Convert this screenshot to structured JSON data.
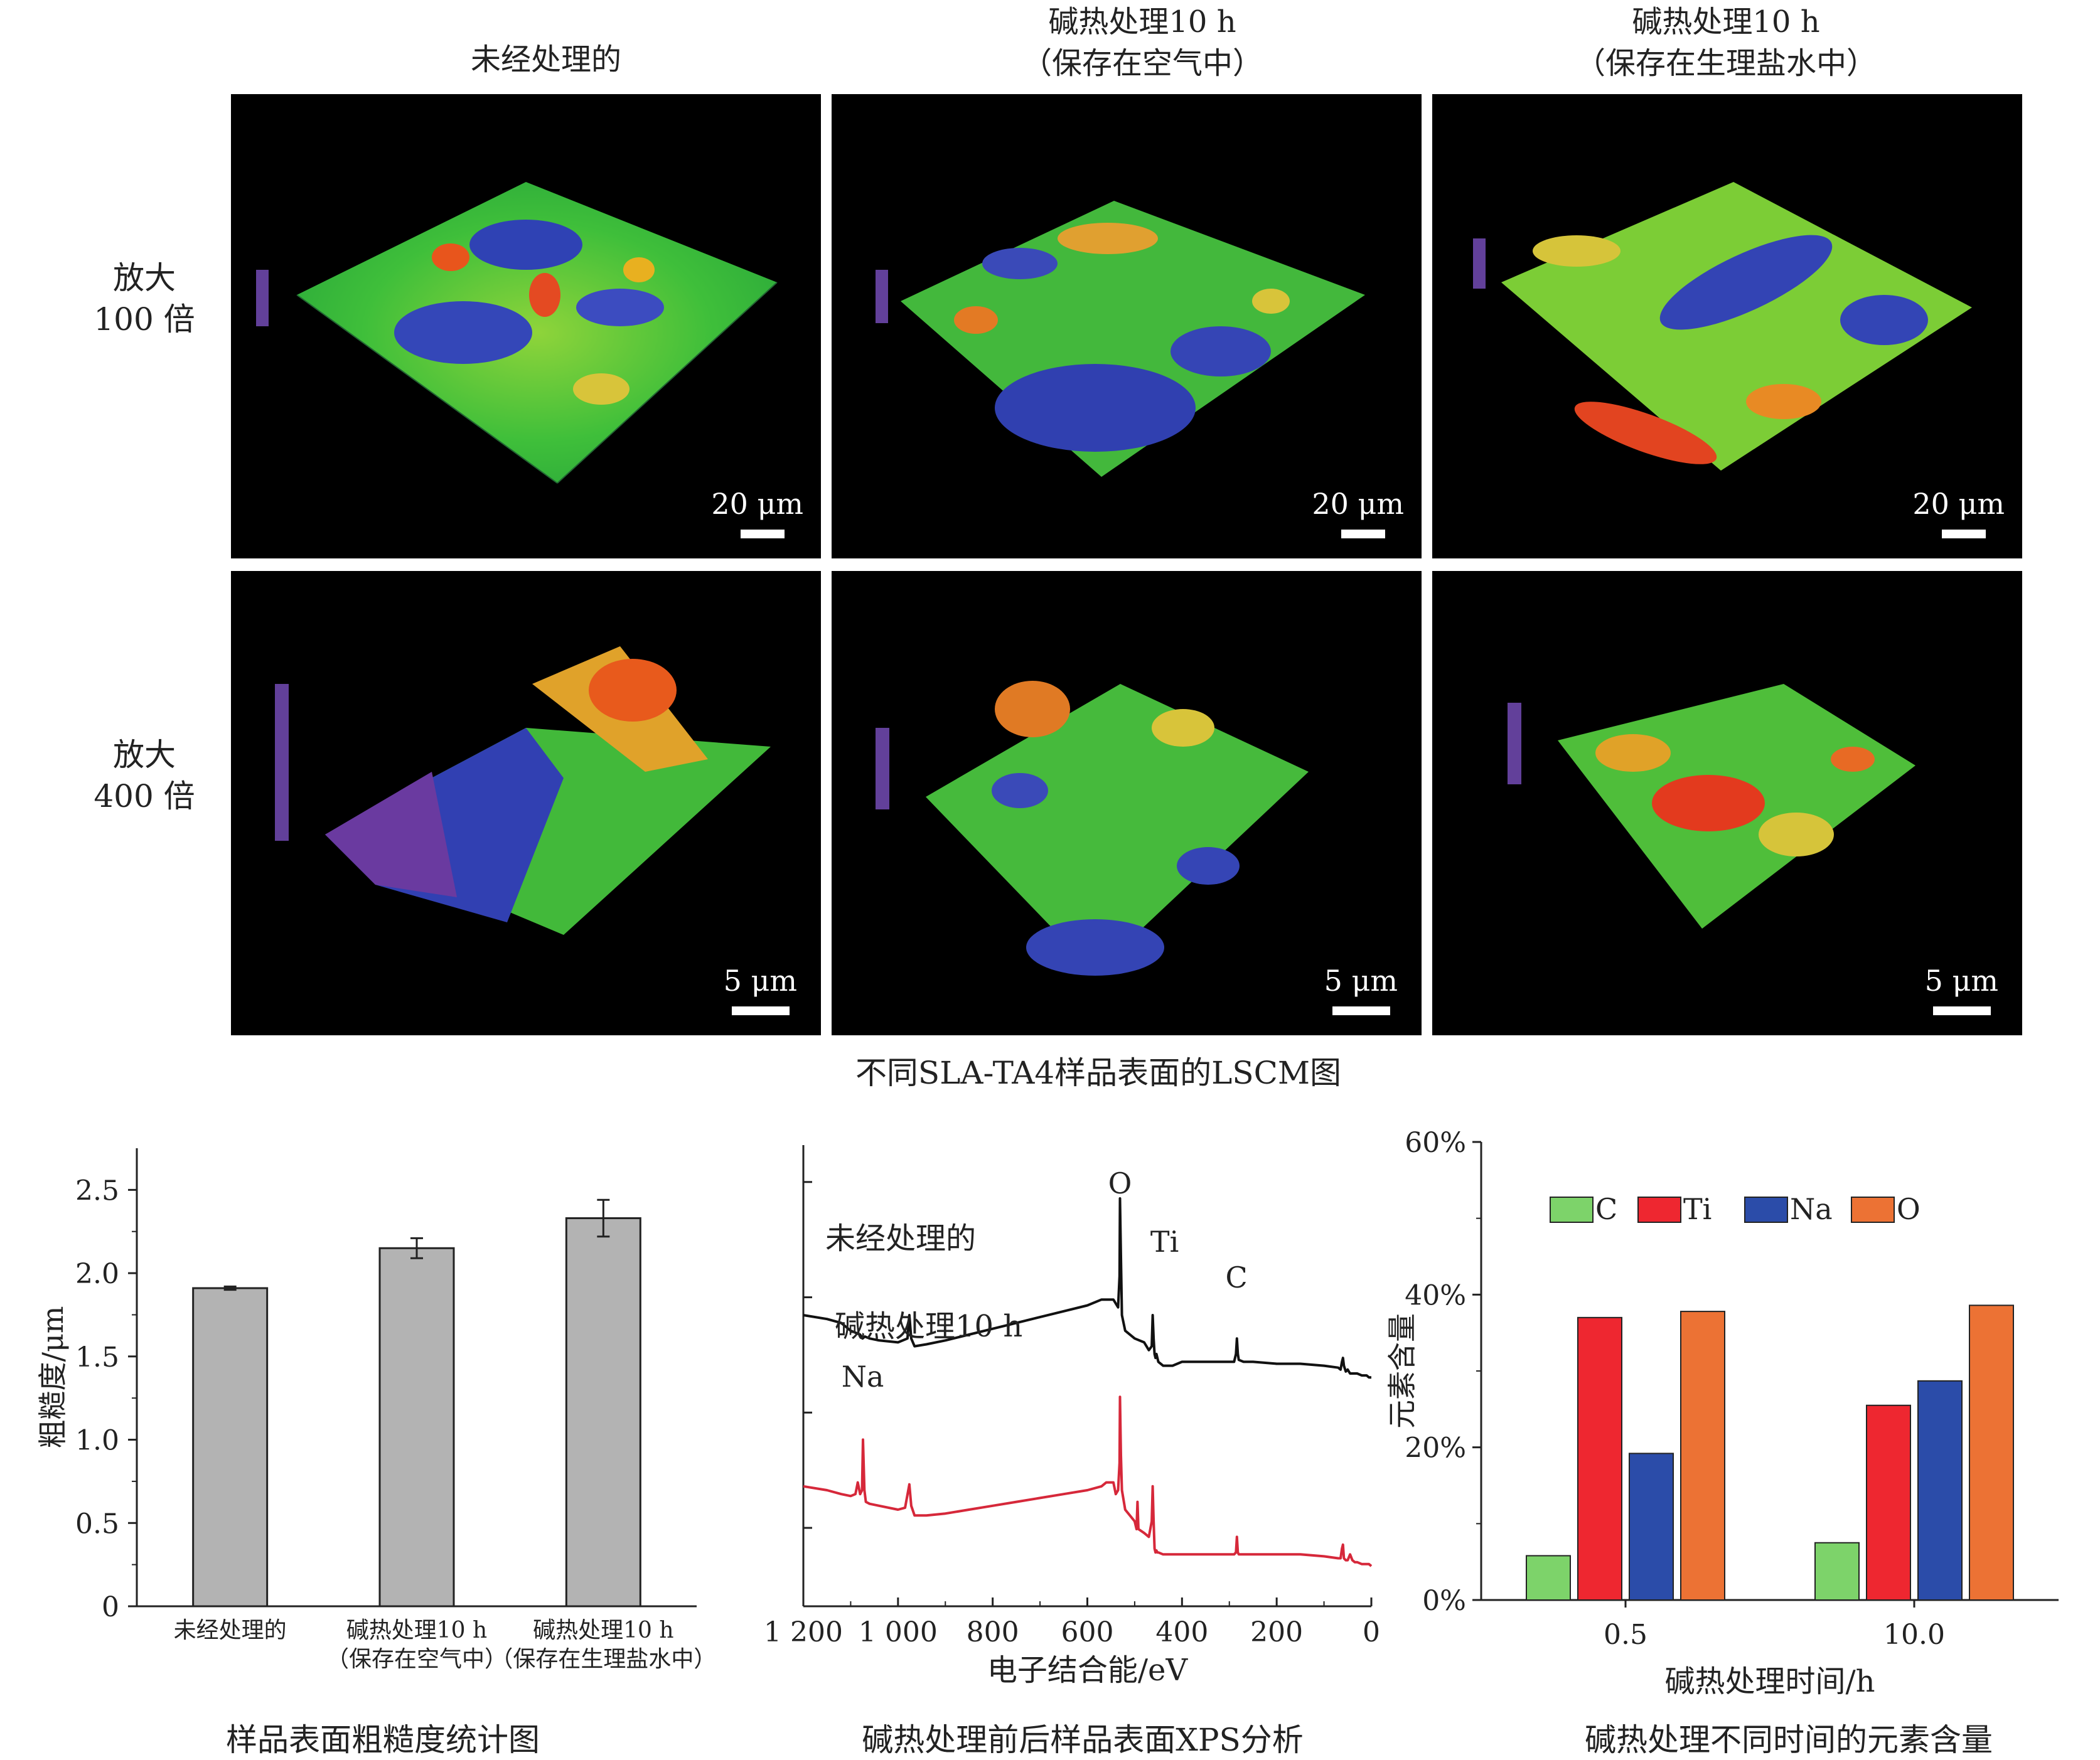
{
  "lscm": {
    "columns": [
      {
        "title": "未经处理的"
      },
      {
        "title": "碱热处理10 h\n（保存在空气中）"
      },
      {
        "title": "碱热处理10 h\n（保存在生理盐水中）"
      }
    ],
    "rows": [
      {
        "label": "放大\n100 倍",
        "scale": "20 μm"
      },
      {
        "label": "放大\n400 倍",
        "scale": "5 μm"
      }
    ],
    "caption": "不同SLA-TA4样品表面的LSCM图"
  },
  "chart_data": [
    {
      "type": "bar",
      "title": "样品表面粗糙度统计图",
      "categories": [
        "未经处理的",
        "碱热处理10 h\n（保存在空气中）",
        "碱热处理10 h\n（保存在生理盐水中）"
      ],
      "values": [
        1.91,
        2.15,
        2.33
      ],
      "errors": [
        0.01,
        0.06,
        0.11
      ],
      "xlabel": "",
      "ylabel": "粗糙度/μm",
      "ylim": [
        0,
        2.75
      ],
      "yticks": [
        "0",
        "0.5",
        "1.0",
        "1.5",
        "2.0",
        "2.5"
      ],
      "bar_color": "#b3b3b3"
    },
    {
      "type": "line",
      "title": "碱热处理前后样品表面XPS分析",
      "xlabel": "电子结合能/eV",
      "xlim": [
        1200,
        0
      ],
      "xticks": [
        "1 200",
        "1 000",
        "800",
        "600",
        "400",
        "200",
        "0"
      ],
      "series": [
        {
          "name": "未经处理的",
          "color": "#111111",
          "x": [
            1200,
            1150,
            1120,
            1100,
            1080,
            1075,
            1070,
            1060,
            1040,
            1000,
            980,
            976,
            972,
            965,
            940,
            900,
            850,
            800,
            750,
            700,
            650,
            600,
            570,
            560,
            545,
            540,
            535,
            532,
            531,
            529,
            527,
            520,
            500,
            480,
            470,
            464,
            462,
            460,
            458,
            456,
            454,
            452,
            450,
            440,
            420,
            400,
            350,
            300,
            290,
            286,
            284,
            282,
            280,
            270,
            250,
            200,
            150,
            100,
            70,
            65,
            62,
            60,
            58,
            54,
            50,
            45,
            40,
            35,
            30,
            20,
            10,
            5,
            0
          ],
          "y": [
            0.7,
            0.69,
            0.68,
            0.66,
            0.65,
            0.64,
            0.645,
            0.64,
            0.635,
            0.63,
            0.64,
            0.7,
            0.64,
            0.62,
            0.625,
            0.635,
            0.65,
            0.665,
            0.68,
            0.695,
            0.71,
            0.725,
            0.74,
            0.74,
            0.74,
            0.73,
            0.72,
            0.8,
            1.0,
            0.85,
            0.7,
            0.66,
            0.64,
            0.63,
            0.61,
            0.62,
            0.7,
            0.64,
            0.6,
            0.59,
            0.6,
            0.59,
            0.58,
            0.57,
            0.57,
            0.58,
            0.58,
            0.58,
            0.58,
            0.6,
            0.64,
            0.6,
            0.585,
            0.58,
            0.58,
            0.575,
            0.575,
            0.57,
            0.565,
            0.56,
            0.58,
            0.59,
            0.57,
            0.555,
            0.56,
            0.55,
            0.55,
            0.55,
            0.55,
            0.545,
            0.545,
            0.54,
            0.54
          ]
        },
        {
          "name": "碱热处理10 h",
          "color": "#d6283a",
          "x": [
            1200,
            1150,
            1120,
            1100,
            1090,
            1085,
            1080,
            1076,
            1074,
            1071,
            1068,
            1060,
            1040,
            1000,
            985,
            976,
            972,
            965,
            940,
            900,
            850,
            800,
            750,
            700,
            650,
            600,
            570,
            560,
            545,
            540,
            535,
            532,
            531,
            529,
            527,
            520,
            500,
            496,
            494,
            492,
            480,
            470,
            464,
            462,
            460,
            458,
            456,
            454,
            452,
            450,
            440,
            420,
            400,
            350,
            300,
            290,
            286,
            284,
            282,
            280,
            270,
            250,
            200,
            150,
            100,
            70,
            65,
            62,
            60,
            58,
            54,
            50,
            45,
            40,
            35,
            30,
            20,
            10,
            5,
            0
          ],
          "y": [
            0.26,
            0.25,
            0.24,
            0.235,
            0.24,
            0.27,
            0.24,
            0.25,
            0.38,
            0.25,
            0.22,
            0.215,
            0.21,
            0.2,
            0.205,
            0.265,
            0.21,
            0.185,
            0.185,
            0.19,
            0.2,
            0.21,
            0.22,
            0.23,
            0.24,
            0.25,
            0.26,
            0.27,
            0.27,
            0.24,
            0.25,
            0.32,
            0.49,
            0.34,
            0.25,
            0.2,
            0.17,
            0.15,
            0.22,
            0.15,
            0.14,
            0.13,
            0.17,
            0.26,
            0.17,
            0.1,
            0.09,
            0.095,
            0.09,
            0.09,
            0.085,
            0.085,
            0.085,
            0.085,
            0.085,
            0.085,
            0.09,
            0.13,
            0.09,
            0.085,
            0.085,
            0.085,
            0.085,
            0.085,
            0.08,
            0.075,
            0.075,
            0.1,
            0.11,
            0.075,
            0.07,
            0.07,
            0.085,
            0.07,
            0.065,
            0.065,
            0.06,
            0.06,
            0.06,
            0.055
          ]
        }
      ],
      "annotations": [
        "O",
        "Ti",
        "C",
        "Na"
      ]
    },
    {
      "type": "bar",
      "title": "碱热处理不同时间的元素含量",
      "categories": [
        "0.5",
        "10.0"
      ],
      "xlabel": "碱热处理时间/h",
      "ylabel": "元素含量",
      "ylim": [
        0,
        60
      ],
      "yticks": [
        "0%",
        "20%",
        "40%",
        "60%"
      ],
      "legend": "top",
      "series": [
        {
          "name": "C",
          "color": "#7dd36a",
          "values": [
            5.8,
            7.5
          ]
        },
        {
          "name": "Ti",
          "color": "#ee2730",
          "values": [
            37.0,
            25.5
          ]
        },
        {
          "name": "Na",
          "color": "#2b4ca9",
          "values": [
            19.2,
            28.7
          ]
        },
        {
          "name": "O",
          "color": "#ec7234",
          "values": [
            37.8,
            38.6
          ]
        }
      ]
    }
  ]
}
